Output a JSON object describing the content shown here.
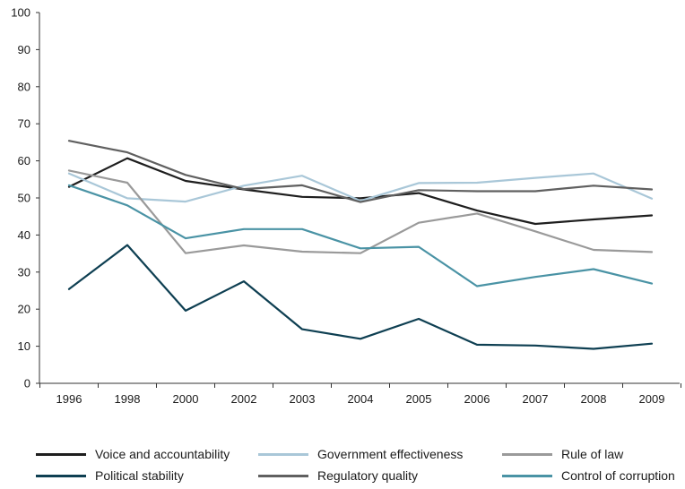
{
  "chart_data": {
    "type": "line",
    "categories": [
      "1996",
      "1998",
      "2000",
      "2002",
      "2003",
      "2004",
      "2005",
      "2006",
      "2007",
      "2008",
      "2009"
    ],
    "ylim": [
      0,
      100
    ],
    "yticks": [
      "0",
      "10",
      "20",
      "30",
      "40",
      "50",
      "60",
      "70",
      "80",
      "90",
      "100"
    ],
    "grid": false,
    "legend_position": "bottom",
    "series": [
      {
        "name": "Voice and accountability",
        "color": "#1e1e1e",
        "values": [
          53.0,
          60.7,
          54.6,
          52.3,
          50.3,
          49.9,
          51.3,
          46.6,
          43.0,
          44.2,
          45.3
        ]
      },
      {
        "name": "Government effectiveness",
        "color": "#a9c7d8",
        "values": [
          56.6,
          49.9,
          49.0,
          53.3,
          56.0,
          49.2,
          54.0,
          54.1,
          55.4,
          56.6,
          49.8
        ]
      },
      {
        "name": "Rule of law",
        "color": "#9a9a9a",
        "values": [
          57.4,
          54.1,
          35.1,
          37.2,
          35.5,
          35.1,
          43.3,
          45.8,
          41.0,
          36.0,
          35.4
        ]
      },
      {
        "name": "Political stability",
        "color": "#0e3f52",
        "values": [
          25.4,
          37.3,
          19.6,
          27.5,
          14.6,
          12.0,
          17.4,
          10.4,
          10.2,
          9.3,
          10.7
        ]
      },
      {
        "name": "Regulatory quality",
        "color": "#606060",
        "values": [
          65.4,
          62.3,
          56.2,
          52.4,
          53.4,
          48.9,
          52.1,
          51.8,
          51.8,
          53.3,
          52.3
        ]
      },
      {
        "name": "Control of corruption",
        "color": "#4a93a5",
        "values": [
          53.4,
          48.0,
          39.1,
          41.6,
          41.6,
          36.4,
          36.8,
          26.2,
          28.7,
          30.8,
          26.9
        ]
      }
    ]
  }
}
